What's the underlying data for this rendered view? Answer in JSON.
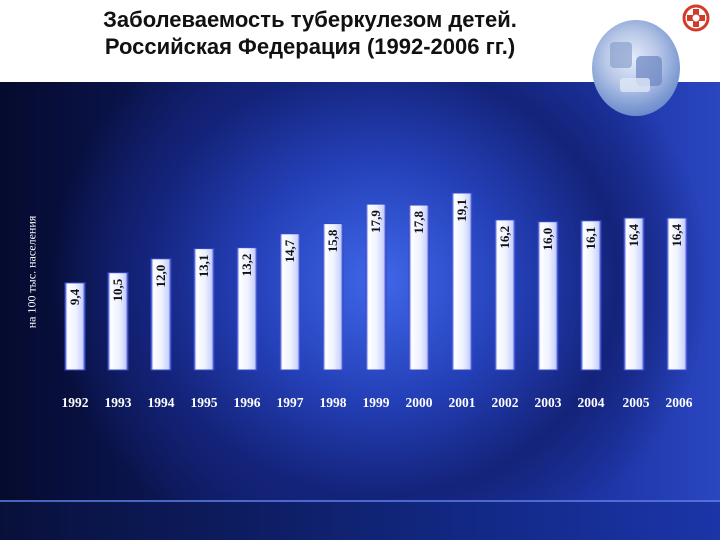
{
  "title": {
    "line1": "Заболеваемость туберкулезом  детей.",
    "line2": "Российская Федерация (1992-2006 гг.)"
  },
  "icons": {
    "logo": "medical-emblem-icon",
    "photo": "clinic-photo-decoration"
  },
  "colors": {
    "bar_face": "#e9eeff",
    "bar_edge": "#3346c9",
    "text_light": "#ffffff"
  },
  "chart_data": {
    "type": "bar",
    "title": "Заболеваемость туберкулезом  детей. Российская Федерация (1992-2006 гг.)",
    "ylabel": "на 100 тыс. населения",
    "xlabel": "",
    "categories": [
      "1992",
      "1993",
      "1994",
      "1995",
      "1996",
      "1997",
      "1998",
      "1999",
      "2000",
      "2001",
      "2002",
      "2003",
      "2004",
      "2005",
      "2006"
    ],
    "values": [
      9.4,
      10.5,
      12.0,
      13.1,
      13.2,
      14.7,
      15.8,
      17.9,
      17.8,
      19.1,
      16.2,
      16.0,
      16.1,
      16.4,
      16.4
    ],
    "value_labels": [
      "9,4",
      "10,5",
      "12,0",
      "13,1",
      "13,2",
      "14,7",
      "15,8",
      "17,9",
      "17,8",
      "19,1",
      "16,2",
      "16,0",
      "16,1",
      "16,4",
      "16,4"
    ],
    "ylim": [
      0,
      19.1
    ],
    "grid": false,
    "legend": "none"
  }
}
